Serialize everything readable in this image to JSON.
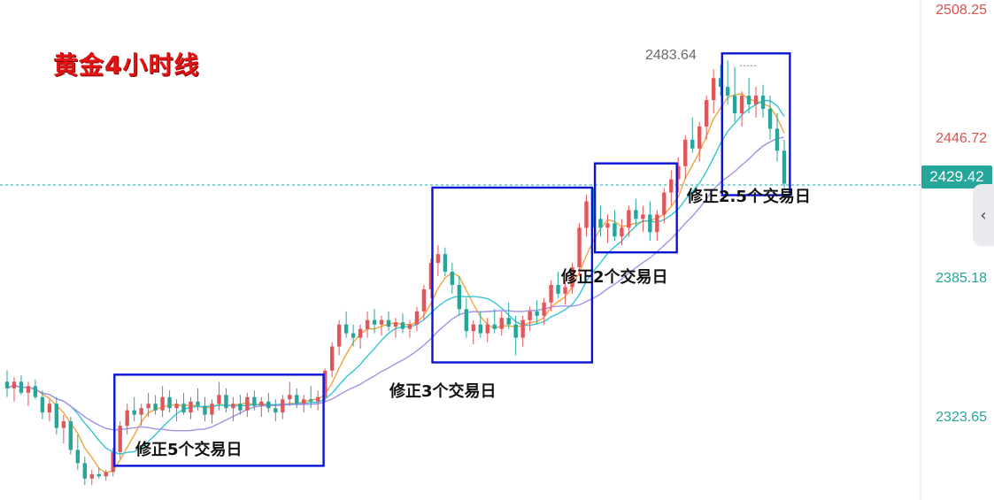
{
  "title": "黄金4小时线",
  "price_axis": {
    "labels": [
      {
        "value": 2508.25,
        "text": "2508.25",
        "color": "#d9534f"
      },
      {
        "value": 2446.72,
        "text": "2446.72",
        "color": "#d9534f"
      },
      {
        "value": 2385.18,
        "text": "2385.18",
        "color": "#26a69a"
      },
      {
        "value": 2323.65,
        "text": "2323.65",
        "color": "#26a69a"
      }
    ],
    "current_price": "2429.42",
    "current_color": "#26a69a"
  },
  "high_label": "2483.64",
  "side_button_icon": "chevron-left-icon",
  "annotations": [
    "修正5个交易日",
    "修正3个交易日",
    "修正2个交易日",
    "修正2.5个交易日"
  ],
  "colors": {
    "up": "#e0575b",
    "down": "#26a69a",
    "ma_fast": "#f5a33b",
    "ma_mid": "#35c5d6",
    "ma_slow": "#a591e6",
    "box": "#0a14d8",
    "guide": "#26a69a"
  },
  "chart_data": {
    "type": "candlestick",
    "title": "黄金4小时线",
    "price_range": [
      2290,
      2512
    ],
    "current_price": 2429.42,
    "high_marker": 2483.64,
    "candles_ohlc": [
      [
        2340,
        2345,
        2333,
        2337
      ],
      [
        2337,
        2342,
        2331,
        2340
      ],
      [
        2340,
        2343,
        2334,
        2335
      ],
      [
        2335,
        2340,
        2329,
        2338
      ],
      [
        2338,
        2341,
        2332,
        2333
      ],
      [
        2333,
        2336,
        2323,
        2326
      ],
      [
        2326,
        2332,
        2322,
        2330
      ],
      [
        2330,
        2333,
        2316,
        2319
      ],
      [
        2319,
        2325,
        2312,
        2322
      ],
      [
        2322,
        2324,
        2307,
        2309
      ],
      [
        2309,
        2316,
        2300,
        2303
      ],
      [
        2303,
        2306,
        2293,
        2296
      ],
      [
        2296,
        2300,
        2293,
        2298
      ],
      [
        2298,
        2301,
        2296,
        2297
      ],
      [
        2297,
        2300,
        2295,
        2299
      ],
      [
        2299,
        2310,
        2297,
        2308
      ],
      [
        2308,
        2322,
        2305,
        2320
      ],
      [
        2320,
        2330,
        2316,
        2327
      ],
      [
        2327,
        2333,
        2322,
        2325
      ],
      [
        2325,
        2330,
        2320,
        2328
      ],
      [
        2328,
        2335,
        2324,
        2330
      ],
      [
        2330,
        2334,
        2325,
        2327
      ],
      [
        2327,
        2338,
        2324,
        2333
      ],
      [
        2333,
        2336,
        2326,
        2328
      ],
      [
        2328,
        2332,
        2322,
        2330
      ],
      [
        2330,
        2335,
        2325,
        2326
      ],
      [
        2326,
        2333,
        2323,
        2331
      ],
      [
        2331,
        2337,
        2327,
        2329
      ],
      [
        2329,
        2333,
        2322,
        2325
      ],
      [
        2325,
        2332,
        2321,
        2330
      ],
      [
        2330,
        2340,
        2327,
        2334
      ],
      [
        2334,
        2337,
        2326,
        2328
      ],
      [
        2328,
        2333,
        2322,
        2330
      ],
      [
        2330,
        2334,
        2325,
        2327
      ],
      [
        2327,
        2335,
        2324,
        2333
      ],
      [
        2333,
        2336,
        2327,
        2329
      ],
      [
        2329,
        2333,
        2324,
        2331
      ],
      [
        2331,
        2335,
        2326,
        2328
      ],
      [
        2328,
        2332,
        2322,
        2326
      ],
      [
        2326,
        2334,
        2323,
        2332
      ],
      [
        2332,
        2340,
        2329,
        2334
      ],
      [
        2334,
        2337,
        2328,
        2330
      ],
      [
        2330,
        2334,
        2326,
        2332
      ],
      [
        2332,
        2338,
        2328,
        2331
      ],
      [
        2331,
        2336,
        2327,
        2333
      ],
      [
        2333,
        2346,
        2331,
        2345
      ],
      [
        2345,
        2358,
        2342,
        2356
      ],
      [
        2356,
        2368,
        2352,
        2366
      ],
      [
        2366,
        2372,
        2360,
        2362
      ],
      [
        2362,
        2366,
        2356,
        2360
      ],
      [
        2360,
        2366,
        2355,
        2364
      ],
      [
        2364,
        2372,
        2360,
        2368
      ],
      [
        2368,
        2373,
        2362,
        2366
      ],
      [
        2366,
        2370,
        2361,
        2368
      ],
      [
        2368,
        2372,
        2363,
        2365
      ],
      [
        2365,
        2369,
        2360,
        2367
      ],
      [
        2367,
        2371,
        2362,
        2364
      ],
      [
        2364,
        2368,
        2360,
        2366
      ],
      [
        2366,
        2374,
        2363,
        2372
      ],
      [
        2372,
        2384,
        2368,
        2382
      ],
      [
        2382,
        2396,
        2378,
        2394
      ],
      [
        2394,
        2402,
        2388,
        2398
      ],
      [
        2398,
        2401,
        2388,
        2390
      ],
      [
        2390,
        2394,
        2380,
        2384
      ],
      [
        2384,
        2388,
        2370,
        2373
      ],
      [
        2373,
        2378,
        2360,
        2363
      ],
      [
        2363,
        2368,
        2357,
        2366
      ],
      [
        2366,
        2372,
        2360,
        2362
      ],
      [
        2362,
        2369,
        2358,
        2366
      ],
      [
        2366,
        2373,
        2362,
        2364
      ],
      [
        2364,
        2372,
        2361,
        2369
      ],
      [
        2369,
        2376,
        2364,
        2366
      ],
      [
        2366,
        2370,
        2352,
        2360
      ],
      [
        2360,
        2370,
        2356,
        2368
      ],
      [
        2368,
        2374,
        2363,
        2372
      ],
      [
        2372,
        2377,
        2366,
        2370
      ],
      [
        2370,
        2378,
        2366,
        2376
      ],
      [
        2376,
        2386,
        2372,
        2384
      ],
      [
        2384,
        2390,
        2378,
        2380
      ],
      [
        2380,
        2386,
        2375,
        2383
      ],
      [
        2383,
        2394,
        2380,
        2392
      ],
      [
        2392,
        2412,
        2388,
        2410
      ],
      [
        2410,
        2425,
        2406,
        2422
      ],
      [
        2422,
        2428,
        2410,
        2414
      ],
      [
        2414,
        2420,
        2406,
        2410
      ],
      [
        2410,
        2416,
        2403,
        2412
      ],
      [
        2412,
        2418,
        2404,
        2406
      ],
      [
        2406,
        2414,
        2402,
        2410
      ],
      [
        2410,
        2420,
        2406,
        2418
      ],
      [
        2418,
        2423,
        2411,
        2414
      ],
      [
        2414,
        2420,
        2408,
        2416
      ],
      [
        2416,
        2422,
        2404,
        2408
      ],
      [
        2408,
        2418,
        2404,
        2416
      ],
      [
        2416,
        2428,
        2412,
        2426
      ],
      [
        2426,
        2436,
        2420,
        2432
      ],
      [
        2432,
        2442,
        2426,
        2438
      ],
      [
        2438,
        2452,
        2432,
        2450
      ],
      [
        2450,
        2460,
        2444,
        2446
      ],
      [
        2446,
        2458,
        2440,
        2456
      ],
      [
        2456,
        2470,
        2450,
        2468
      ],
      [
        2468,
        2482,
        2462,
        2478
      ],
      [
        2478,
        2484,
        2470,
        2474
      ],
      [
        2474,
        2486,
        2466,
        2470
      ],
      [
        2470,
        2483,
        2458,
        2462
      ],
      [
        2462,
        2472,
        2456,
        2470
      ],
      [
        2470,
        2478,
        2462,
        2466
      ],
      [
        2466,
        2474,
        2460,
        2470
      ],
      [
        2470,
        2475,
        2460,
        2464
      ],
      [
        2464,
        2470,
        2450,
        2455
      ],
      [
        2455,
        2462,
        2440,
        2445
      ],
      [
        2445,
        2450,
        2428,
        2430
      ]
    ],
    "boxes": [
      {
        "label": "修正5个交易日",
        "from_index": 16,
        "to_index": 44
      },
      {
        "label": "修正3个交易日",
        "from_index": 61,
        "to_index": 82
      },
      {
        "label": "修正2个交易日",
        "from_index": 84,
        "to_index": 94
      },
      {
        "label": "修正2.5个交易日",
        "from_index": 102,
        "to_index": 114
      }
    ],
    "moving_averages": [
      {
        "name": "",
        "period": 5,
        "color": "#f5a33b"
      },
      {
        "name": "",
        "period": 10,
        "color": "#35c5d6"
      },
      {
        "name": "",
        "period": 20,
        "color": "#a591e6"
      }
    ]
  }
}
